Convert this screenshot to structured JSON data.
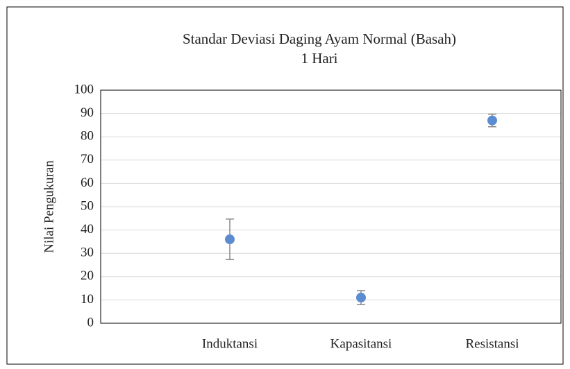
{
  "chart_data": {
    "type": "scatter",
    "title": [
      "Standar Deviasi Daging Ayam Normal (Basah)",
      "1 Hari"
    ],
    "y_label": "Nilai Pengukuran",
    "categories": [
      "Induktansi",
      "Kapasitansi",
      "Resistansi"
    ],
    "values": [
      36,
      11,
      87
    ],
    "errors": [
      8.7,
      3,
      2.7
    ],
    "color": "#5b8bd0",
    "ylim": [
      0,
      100
    ],
    "yticks": [
      0,
      10,
      20,
      30,
      40,
      50,
      60,
      70,
      80,
      90,
      100
    ],
    "grid": true
  }
}
